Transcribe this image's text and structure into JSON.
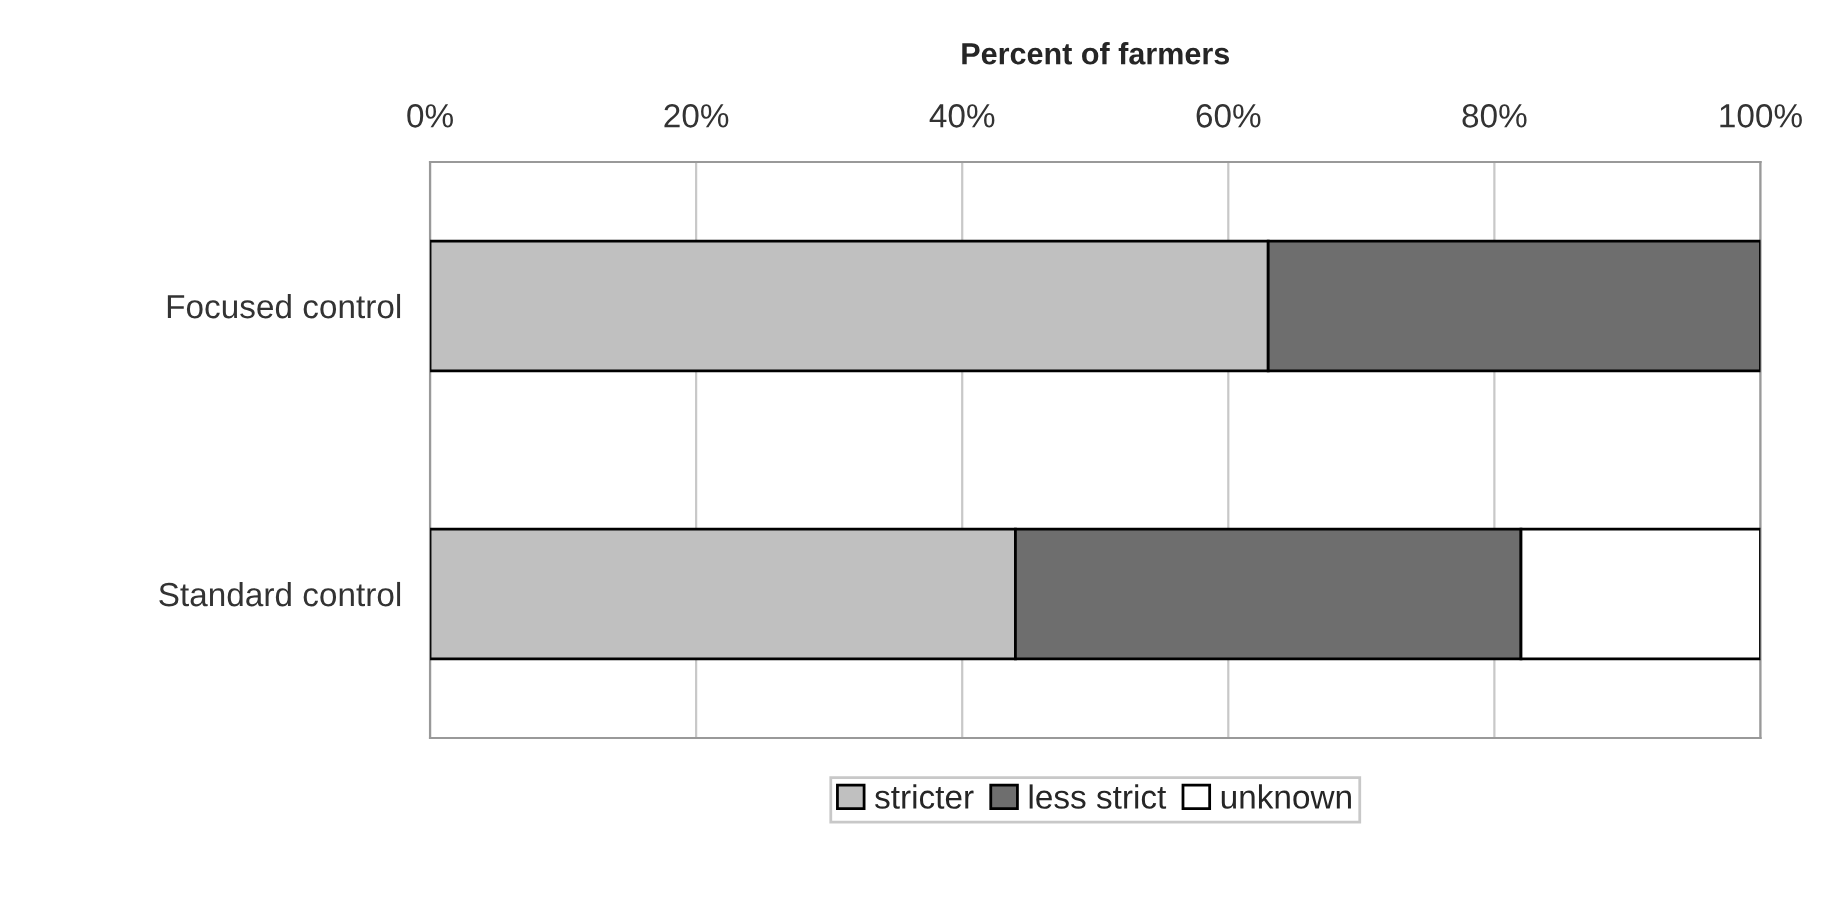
{
  "chart_data": {
    "type": "bar",
    "orientation": "horizontal",
    "stacked": true,
    "xlabel": "Percent of farmers",
    "categories": [
      "Focused control",
      "Standard control"
    ],
    "series": [
      {
        "name": "stricter",
        "color": "#c0c0c0",
        "values": [
          63,
          44
        ]
      },
      {
        "name": "less strict",
        "color": "#6e6e6e",
        "values": [
          37,
          38
        ]
      },
      {
        "name": "unknown",
        "color": "#ffffff",
        "values": [
          null,
          18
        ]
      }
    ],
    "xlim": [
      0,
      100
    ],
    "xticks": [
      {
        "value": 0,
        "label": "0%"
      },
      {
        "value": 20,
        "label": "20%"
      },
      {
        "value": 40,
        "label": "40%"
      },
      {
        "value": 60,
        "label": "60%"
      },
      {
        "value": 80,
        "label": "80%"
      },
      {
        "value": 100,
        "label": "100%"
      }
    ],
    "grid": "x",
    "legend": "bottom"
  }
}
